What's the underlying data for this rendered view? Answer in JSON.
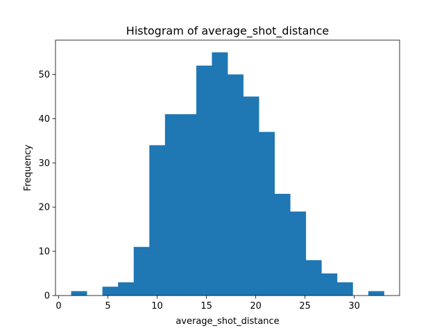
{
  "chart_data": {
    "type": "bar",
    "title": "Histogram of average_shot_distance",
    "xlabel": "average_shot_distance",
    "ylabel": "Frequency",
    "bin_edges": [
      1.27,
      2.857,
      4.444,
      6.031,
      7.618,
      9.205,
      10.792,
      12.379,
      13.966,
      15.553,
      17.14,
      18.727,
      20.314,
      21.901,
      23.488,
      25.075,
      26.662,
      28.249,
      29.836,
      31.423,
      33.01
    ],
    "values": [
      1,
      0,
      2,
      3,
      11,
      34,
      41,
      41,
      52,
      55,
      50,
      45,
      37,
      23,
      19,
      8,
      5,
      3,
      0,
      1
    ],
    "xlim": [
      -0.317,
      34.597
    ],
    "ylim": [
      0,
      57.75
    ],
    "xticks": [
      0,
      5,
      10,
      15,
      20,
      25,
      30
    ],
    "yticks": [
      0,
      10,
      20,
      30,
      40,
      50
    ],
    "grid": false,
    "bar_color": "#1f77b4"
  }
}
